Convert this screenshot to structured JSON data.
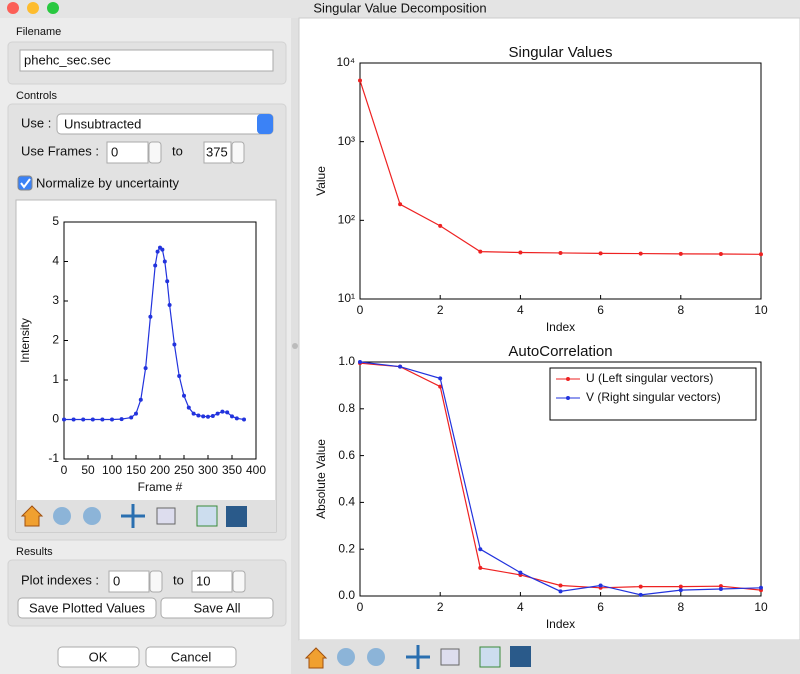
{
  "window": {
    "title": "Singular Value Decomposition"
  },
  "filename": {
    "label": "Filename",
    "value": "phehc_sec.sec"
  },
  "controls": {
    "label": "Controls",
    "use_label": "Use :",
    "use_value": "Unsubtracted",
    "frames_label": "Use Frames :",
    "frames_start": 0,
    "frames_to": "to",
    "frames_end": 375,
    "normalize_label": "Normalize by uncertainty",
    "normalize_checked": true
  },
  "results": {
    "label": "Results",
    "indexes_label": "Plot indexes :",
    "index_start": 0,
    "index_to": "to",
    "index_end": 10,
    "save_plotted": "Save Plotted Values",
    "save_all": "Save All"
  },
  "buttons": {
    "ok": "OK",
    "cancel": "Cancel"
  },
  "chart_data": [
    {
      "type": "line",
      "xlabel": "Frame #",
      "ylabel": "Intensity",
      "x": [
        0,
        20,
        40,
        60,
        80,
        100,
        120,
        140,
        150,
        160,
        170,
        180,
        190,
        195,
        200,
        205,
        210,
        215,
        220,
        230,
        240,
        250,
        260,
        270,
        280,
        290,
        300,
        310,
        320,
        330,
        340,
        350,
        360,
        375
      ],
      "series": [
        {
          "color": "#2233dd",
          "values": [
            0,
            0,
            0,
            0,
            0,
            0,
            0.01,
            0.05,
            0.15,
            0.5,
            1.3,
            2.6,
            3.9,
            4.25,
            4.35,
            4.3,
            4.0,
            3.5,
            2.9,
            1.9,
            1.1,
            0.6,
            0.3,
            0.15,
            0.1,
            0.08,
            0.07,
            0.09,
            0.15,
            0.2,
            0.18,
            0.08,
            0.03,
            0
          ]
        }
      ],
      "xlim": [
        0,
        400
      ],
      "xticks": [
        0,
        50,
        100,
        150,
        200,
        250,
        300,
        350,
        400
      ],
      "ylim": [
        -1,
        5
      ],
      "yticks": [
        -1,
        0,
        1,
        2,
        3,
        4,
        5
      ]
    },
    {
      "type": "line",
      "title": "Singular Values",
      "xlabel": "Index",
      "ylabel": "Value",
      "log_y": true,
      "x": [
        0,
        1,
        2,
        3,
        4,
        5,
        6,
        7,
        8,
        9,
        10
      ],
      "series": [
        {
          "color": "#ee2222",
          "values": [
            6000,
            160,
            85,
            40,
            39,
            38.5,
            38,
            37.8,
            37.5,
            37.3,
            37
          ]
        }
      ],
      "xlim": [
        0,
        10
      ],
      "xticks": [
        0,
        2,
        4,
        6,
        8,
        10
      ],
      "ylim": [
        10,
        10000
      ],
      "yticks": [
        {
          "value": 10,
          "label": "10¹"
        },
        {
          "value": 100,
          "label": "10²"
        },
        {
          "value": 1000,
          "label": "10³"
        },
        {
          "value": 10000,
          "label": "10⁴"
        }
      ]
    },
    {
      "type": "line",
      "title": "AutoCorrelation",
      "xlabel": "Index",
      "ylabel": "Absolute Value",
      "legend": "upper right",
      "x": [
        0,
        1,
        2,
        3,
        4,
        5,
        6,
        7,
        8,
        9,
        10
      ],
      "series": [
        {
          "name": "U (Left singular vectors)",
          "color": "#ee2222",
          "values": [
            0.995,
            0.98,
            0.895,
            0.12,
            0.09,
            0.045,
            0.035,
            0.04,
            0.04,
            0.042,
            0.025
          ]
        },
        {
          "name": "V (Right singular vectors)",
          "color": "#2233dd",
          "values": [
            1.0,
            0.98,
            0.93,
            0.2,
            0.1,
            0.02,
            0.045,
            0.005,
            0.025,
            0.03,
            0.035
          ]
        }
      ],
      "xlim": [
        0,
        10
      ],
      "xticks": [
        0,
        2,
        4,
        6,
        8,
        10
      ],
      "ylim": [
        0,
        1
      ],
      "yticks": [
        {
          "value": 0,
          "label": "0.0"
        },
        {
          "value": 0.2,
          "label": "0.2"
        },
        {
          "value": 0.4,
          "label": "0.4"
        },
        {
          "value": 0.6,
          "label": "0.6"
        },
        {
          "value": 0.8,
          "label": "0.8"
        },
        {
          "value": 1,
          "label": "1.0"
        }
      ]
    }
  ]
}
